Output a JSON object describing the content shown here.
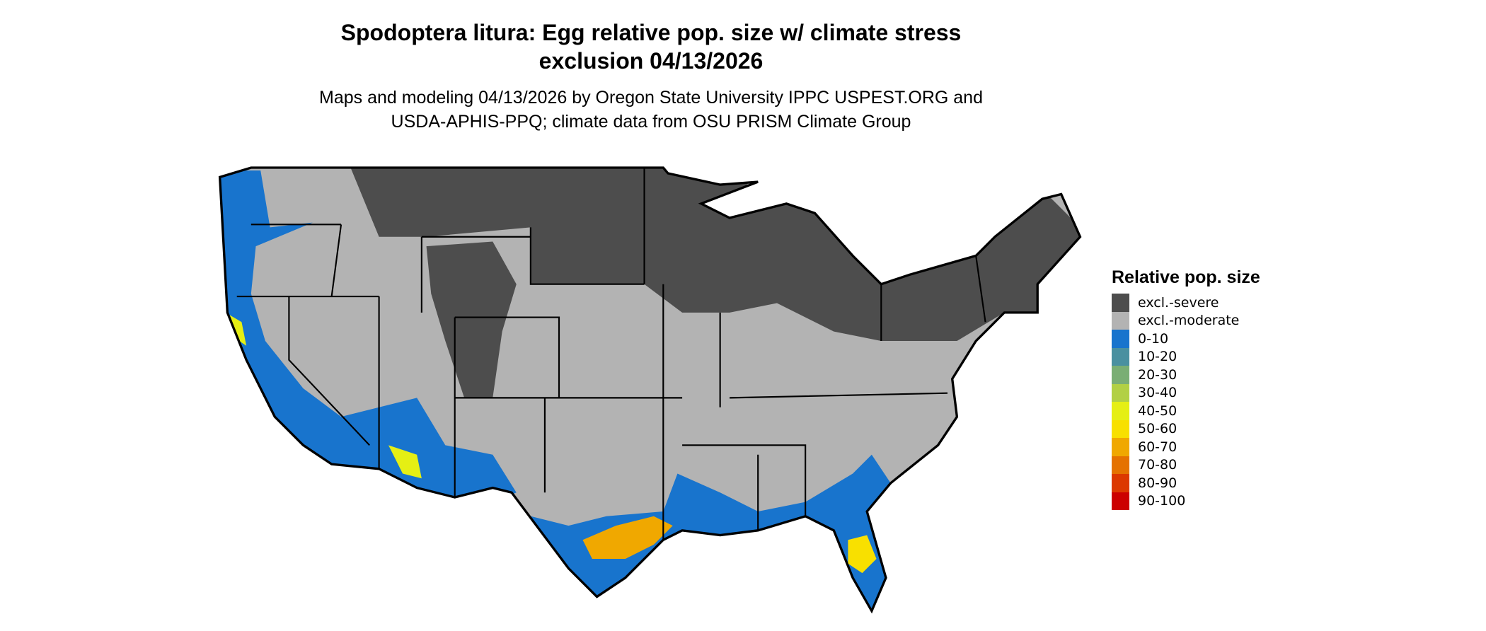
{
  "title_line1": "Spodoptera litura: Egg relative pop. size w/ climate stress",
  "title_line2": "exclusion 04/13/2026",
  "subtitle_line1": "Maps and modeling 04/13/2026 by Oregon State University IPPC USPEST.ORG and",
  "subtitle_line2": "USDA-APHIS-PPQ; climate data from OSU PRISM Climate Group",
  "legend": {
    "title": "Relative pop. size",
    "items": [
      {
        "label": "excl.-severe",
        "color": "#4d4d4d"
      },
      {
        "label": "excl.-moderate",
        "color": "#b3b3b3"
      },
      {
        "label": "0-10",
        "color": "#1874cd"
      },
      {
        "label": "10-20",
        "color": "#4a90a0"
      },
      {
        "label": "20-30",
        "color": "#7aae74"
      },
      {
        "label": "30-40",
        "color": "#b2d044"
      },
      {
        "label": "40-50",
        "color": "#e5ef14"
      },
      {
        "label": "50-60",
        "color": "#f8e000"
      },
      {
        "label": "60-70",
        "color": "#f0a800"
      },
      {
        "label": "70-80",
        "color": "#e57200"
      },
      {
        "label": "80-90",
        "color": "#dc3800"
      },
      {
        "label": "90-100",
        "color": "#cc0000"
      }
    ]
  }
}
